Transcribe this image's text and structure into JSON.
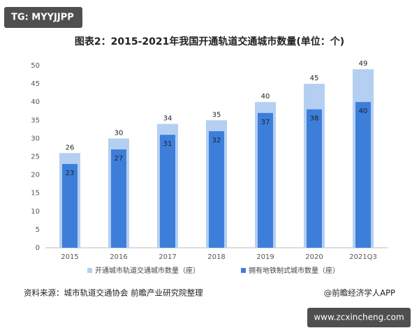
{
  "chart_data": {
    "type": "overlap-bar",
    "title": "图表2：2015-2021年我国开通轨道交通城市数量(单位：个)",
    "categories": [
      "2015",
      "2016",
      "2017",
      "2018",
      "2019",
      "2020",
      "2021Q3"
    ],
    "series": [
      {
        "name": "开通城市轨道交通城市数量（座）",
        "color": "#b4cff2",
        "values": [
          26,
          30,
          34,
          35,
          40,
          45,
          49
        ]
      },
      {
        "name": "拥有地铁制式城市数量（座）",
        "color": "#3d7edb",
        "values": [
          23,
          27,
          31,
          32,
          37,
          38,
          40
        ]
      }
    ],
    "ylim": [
      0,
      50
    ],
    "yticks": [
      0,
      5,
      10,
      15,
      20,
      25,
      30,
      35,
      40,
      45,
      50
    ],
    "grid": false,
    "source": "资料来源：城市轨道交通协会 前瞻产业研究院整理",
    "credit": "@前瞻经济学人APP"
  },
  "watermarks": [
    "TG: MYYJJPP",
    "www.zcxincheng.com"
  ]
}
